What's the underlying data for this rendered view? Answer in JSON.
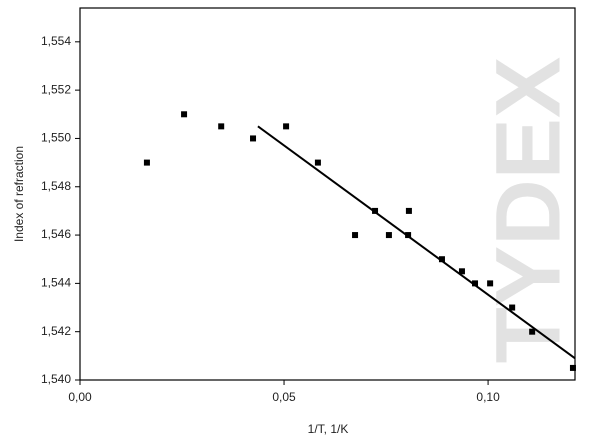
{
  "chart_data": {
    "type": "scatter",
    "ylabel": "Index of refraction",
    "xlabel": "1/T, 1/K",
    "watermark": "TYDEX",
    "xlim": [
      0,
      0.1213
    ],
    "ylim": [
      1.54,
      1.5554
    ],
    "xticks": [
      {
        "value": 0,
        "label": "0,00"
      },
      {
        "value": 0.05,
        "label": "0,05"
      },
      {
        "value": 0.1,
        "label": "0,10"
      }
    ],
    "yticks": [
      {
        "value": 1.54,
        "label": "1,540"
      },
      {
        "value": 1.542,
        "label": "1,542"
      },
      {
        "value": 1.544,
        "label": "1,544"
      },
      {
        "value": 1.546,
        "label": "1,546"
      },
      {
        "value": 1.548,
        "label": "1,548"
      },
      {
        "value": 1.55,
        "label": "1,550"
      },
      {
        "value": 1.552,
        "label": "1,552"
      },
      {
        "value": 1.554,
        "label": "1,554"
      }
    ],
    "series": [
      {
        "color": "#000000",
        "x": [
          0.0164,
          0.0255,
          0.0346,
          0.0424,
          0.0505,
          0.0583,
          0.0674,
          0.0723,
          0.0757,
          0.0806,
          0.0804,
          0.0887,
          0.0936,
          0.0968,
          0.1005,
          0.1059,
          0.1108,
          0.1208
        ],
        "values": [
          1.549,
          1.551,
          1.5505,
          1.55,
          1.5505,
          1.549,
          1.546,
          1.547,
          1.546,
          1.547,
          1.546,
          1.545,
          1.5445,
          1.544,
          1.544,
          1.543,
          1.542,
          1.5405
        ]
      },
      {
        "type": "line",
        "color": "#000000",
        "x": [
          0.0436,
          0.1213
        ],
        "values": [
          1.5505,
          1.5409
        ]
      }
    ]
  }
}
